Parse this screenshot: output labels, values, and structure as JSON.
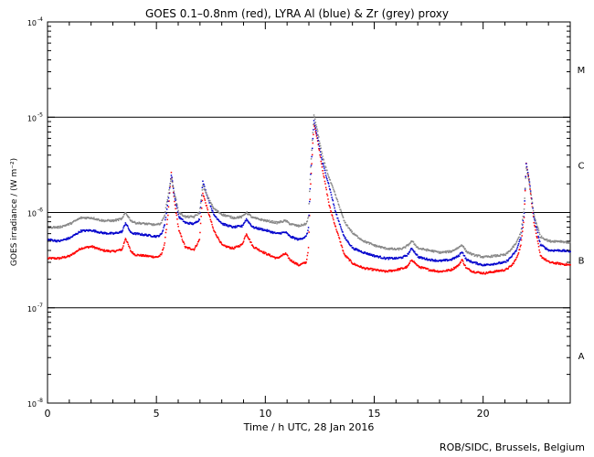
{
  "chart_data": {
    "type": "scatter",
    "title": "GOES 0.1–0.8nm (red), LYRA Al (blue) & Zr (grey) proxy",
    "xlabel": "Time / h UTC, 28 Jan 2016",
    "ylabel": "GOES irradiance / (W m⁻²)",
    "xlim": [
      0,
      24
    ],
    "ylim": [
      1e-08,
      0.0001
    ],
    "yscale": "log",
    "x_ticks": [
      "0",
      "5",
      "10",
      "15",
      "20"
    ],
    "y_ticks": [
      {
        "base": "10",
        "exp": "-8"
      },
      {
        "base": "10",
        "exp": "-7"
      },
      {
        "base": "10",
        "exp": "-6"
      },
      {
        "base": "10",
        "exp": "-5"
      },
      {
        "base": "10",
        "exp": "-4"
      }
    ],
    "threshold_lines": [
      1e-07,
      1e-06,
      1e-05
    ],
    "flare_classes": [
      {
        "label": "A",
        "level": 3.16e-08
      },
      {
        "label": "B",
        "level": 3.16e-07
      },
      {
        "label": "C",
        "level": 3.16e-06
      },
      {
        "label": "M",
        "level": 3.16e-05
      }
    ],
    "series": [
      {
        "name": "GOES 0.1–0.8nm",
        "color": "#ff0000",
        "points": [
          [
            0,
            3.3e-07
          ],
          [
            0.5,
            3.3e-07
          ],
          [
            1.0,
            3.5e-07
          ],
          [
            1.5,
            4.2e-07
          ],
          [
            2.0,
            4.4e-07
          ],
          [
            2.5,
            4e-07
          ],
          [
            3.0,
            3.9e-07
          ],
          [
            3.4,
            4.1e-07
          ],
          [
            3.55,
            5.4e-07
          ],
          [
            3.8,
            3.9e-07
          ],
          [
            4.0,
            3.6e-07
          ],
          [
            4.5,
            3.5e-07
          ],
          [
            5.0,
            3.4e-07
          ],
          [
            5.2,
            3.6e-07
          ],
          [
            5.35,
            4.8e-07
          ],
          [
            5.5,
            9.5e-07
          ],
          [
            5.65,
            2.6e-06
          ],
          [
            5.8,
            1.3e-06
          ],
          [
            6.0,
            6.5e-07
          ],
          [
            6.3,
            4.3e-07
          ],
          [
            6.7,
            4.1e-07
          ],
          [
            6.95,
            5.2e-07
          ],
          [
            7.1,
            1.6e-06
          ],
          [
            7.3,
            1.1e-06
          ],
          [
            7.6,
            6.5e-07
          ],
          [
            8.0,
            4.5e-07
          ],
          [
            8.5,
            4.2e-07
          ],
          [
            8.9,
            4.6e-07
          ],
          [
            9.1,
            6e-07
          ],
          [
            9.4,
            4.4e-07
          ],
          [
            10.0,
            3.7e-07
          ],
          [
            10.5,
            3.3e-07
          ],
          [
            10.9,
            3.7e-07
          ],
          [
            11.1,
            3.2e-07
          ],
          [
            11.5,
            2.8e-07
          ],
          [
            11.85,
            3e-07
          ],
          [
            11.95,
            4.2e-07
          ],
          [
            12.05,
            2e-06
          ],
          [
            12.2,
            8.5e-06
          ],
          [
            12.35,
            6e-06
          ],
          [
            12.6,
            2.8e-06
          ],
          [
            12.9,
            1.2e-06
          ],
          [
            13.2,
            7e-07
          ],
          [
            13.6,
            3.6e-07
          ],
          [
            14.0,
            2.9e-07
          ],
          [
            14.5,
            2.6e-07
          ],
          [
            15.0,
            2.5e-07
          ],
          [
            15.5,
            2.4e-07
          ],
          [
            16.0,
            2.5e-07
          ],
          [
            16.3,
            2.6e-07
          ],
          [
            16.5,
            2.7e-07
          ],
          [
            16.7,
            3.2e-07
          ],
          [
            17.0,
            2.7e-07
          ],
          [
            17.5,
            2.5e-07
          ],
          [
            18.0,
            2.4e-07
          ],
          [
            18.5,
            2.5e-07
          ],
          [
            18.85,
            2.8e-07
          ],
          [
            19.0,
            3.2e-07
          ],
          [
            19.2,
            2.6e-07
          ],
          [
            19.5,
            2.4e-07
          ],
          [
            20.0,
            2.3e-07
          ],
          [
            20.5,
            2.4e-07
          ],
          [
            21.0,
            2.5e-07
          ],
          [
            21.3,
            2.8e-07
          ],
          [
            21.5,
            3.3e-07
          ],
          [
            21.7,
            4.5e-07
          ],
          [
            21.85,
            9e-07
          ],
          [
            21.95,
            3.3e-06
          ],
          [
            22.1,
            2e-06
          ],
          [
            22.3,
            8e-07
          ],
          [
            22.6,
            3.5e-07
          ],
          [
            23.0,
            3e-07
          ],
          [
            23.5,
            2.9e-07
          ],
          [
            24.0,
            2.8e-07
          ]
        ]
      },
      {
        "name": "LYRA Al",
        "color": "#0000cc",
        "points": [
          [
            0,
            5.2e-07
          ],
          [
            0.5,
            5e-07
          ],
          [
            1.0,
            5.4e-07
          ],
          [
            1.5,
            6.4e-07
          ],
          [
            2.0,
            6.5e-07
          ],
          [
            2.5,
            6.1e-07
          ],
          [
            3.0,
            6e-07
          ],
          [
            3.4,
            6.3e-07
          ],
          [
            3.55,
            7.8e-07
          ],
          [
            3.8,
            6.1e-07
          ],
          [
            4.0,
            6e-07
          ],
          [
            4.5,
            5.8e-07
          ],
          [
            5.0,
            5.6e-07
          ],
          [
            5.2,
            5.9e-07
          ],
          [
            5.35,
            7.5e-07
          ],
          [
            5.5,
            1.3e-06
          ],
          [
            5.65,
            2.5e-06
          ],
          [
            5.8,
            1.5e-06
          ],
          [
            6.0,
            9e-07
          ],
          [
            6.3,
            7.8e-07
          ],
          [
            6.7,
            7.6e-07
          ],
          [
            6.95,
            8.5e-07
          ],
          [
            7.1,
            2.1e-06
          ],
          [
            7.3,
            1.5e-06
          ],
          [
            7.6,
            9.5e-07
          ],
          [
            8.0,
            7.6e-07
          ],
          [
            8.5,
            7e-07
          ],
          [
            8.9,
            7.2e-07
          ],
          [
            9.1,
            8.5e-07
          ],
          [
            9.4,
            7e-07
          ],
          [
            10.0,
            6.5e-07
          ],
          [
            10.5,
            6e-07
          ],
          [
            10.9,
            6.2e-07
          ],
          [
            11.1,
            5.6e-07
          ],
          [
            11.5,
            5.2e-07
          ],
          [
            11.85,
            5.6e-07
          ],
          [
            11.95,
            6.8e-07
          ],
          [
            12.05,
            2.5e-06
          ],
          [
            12.2,
            9e-06
          ],
          [
            12.35,
            6.5e-06
          ],
          [
            12.6,
            3.3e-06
          ],
          [
            12.9,
            1.9e-06
          ],
          [
            13.2,
            1e-06
          ],
          [
            13.6,
            5.5e-07
          ],
          [
            14.0,
            4.2e-07
          ],
          [
            14.5,
            3.8e-07
          ],
          [
            15.0,
            3.5e-07
          ],
          [
            15.5,
            3.3e-07
          ],
          [
            16.0,
            3.3e-07
          ],
          [
            16.3,
            3.4e-07
          ],
          [
            16.5,
            3.6e-07
          ],
          [
            16.7,
            4.2e-07
          ],
          [
            17.0,
            3.4e-07
          ],
          [
            17.5,
            3.2e-07
          ],
          [
            18.0,
            3.1e-07
          ],
          [
            18.5,
            3.2e-07
          ],
          [
            18.85,
            3.5e-07
          ],
          [
            19.0,
            3.9e-07
          ],
          [
            19.2,
            3.2e-07
          ],
          [
            19.5,
            3e-07
          ],
          [
            20.0,
            2.8e-07
          ],
          [
            20.5,
            2.9e-07
          ],
          [
            21.0,
            3e-07
          ],
          [
            21.3,
            3.5e-07
          ],
          [
            21.5,
            4e-07
          ],
          [
            21.7,
            5.5e-07
          ],
          [
            21.85,
            1e-06
          ],
          [
            21.95,
            3.2e-06
          ],
          [
            22.1,
            2.1e-06
          ],
          [
            22.3,
            9e-07
          ],
          [
            22.6,
            4.6e-07
          ],
          [
            23.0,
            4e-07
          ],
          [
            23.5,
            4e-07
          ],
          [
            24.0,
            3.9e-07
          ]
        ]
      },
      {
        "name": "Zr",
        "color": "#888888",
        "points": [
          [
            0,
            7e-07
          ],
          [
            0.5,
            7e-07
          ],
          [
            1.0,
            7.6e-07
          ],
          [
            1.5,
            8.8e-07
          ],
          [
            2.0,
            8.8e-07
          ],
          [
            2.5,
            8.2e-07
          ],
          [
            3.0,
            8.2e-07
          ],
          [
            3.4,
            8.6e-07
          ],
          [
            3.55,
            1e-06
          ],
          [
            3.8,
            8.2e-07
          ],
          [
            4.0,
            7.8e-07
          ],
          [
            4.5,
            7.6e-07
          ],
          [
            5.0,
            7.4e-07
          ],
          [
            5.2,
            7.8e-07
          ],
          [
            5.35,
            9.5e-07
          ],
          [
            5.5,
            1.5e-06
          ],
          [
            5.65,
            2.3e-06
          ],
          [
            5.8,
            1.6e-06
          ],
          [
            6.0,
            1e-06
          ],
          [
            6.3,
            9e-07
          ],
          [
            6.7,
            9e-07
          ],
          [
            6.95,
            1e-06
          ],
          [
            7.1,
            1.9e-06
          ],
          [
            7.3,
            1.5e-06
          ],
          [
            7.6,
            1.1e-06
          ],
          [
            8.0,
            9.5e-07
          ],
          [
            8.5,
            8.8e-07
          ],
          [
            8.9,
            9e-07
          ],
          [
            9.1,
            1e-06
          ],
          [
            9.4,
            8.8e-07
          ],
          [
            10.0,
            8.2e-07
          ],
          [
            10.5,
            7.8e-07
          ],
          [
            10.9,
            8.2e-07
          ],
          [
            11.1,
            7.6e-07
          ],
          [
            11.5,
            7.2e-07
          ],
          [
            11.85,
            7.6e-07
          ],
          [
            11.95,
            9e-07
          ],
          [
            12.05,
            3e-06
          ],
          [
            12.2,
            1.05e-05
          ],
          [
            12.35,
            7.5e-06
          ],
          [
            12.6,
            3.8e-06
          ],
          [
            12.9,
            2.3e-06
          ],
          [
            13.2,
            1.5e-06
          ],
          [
            13.6,
            8e-07
          ],
          [
            14.0,
            6e-07
          ],
          [
            14.5,
            5e-07
          ],
          [
            15.0,
            4.5e-07
          ],
          [
            15.5,
            4.2e-07
          ],
          [
            16.0,
            4.1e-07
          ],
          [
            16.3,
            4.2e-07
          ],
          [
            16.5,
            4.5e-07
          ],
          [
            16.7,
            5e-07
          ],
          [
            17.0,
            4.2e-07
          ],
          [
            17.5,
            4e-07
          ],
          [
            18.0,
            3.8e-07
          ],
          [
            18.5,
            3.9e-07
          ],
          [
            18.85,
            4.3e-07
          ],
          [
            19.0,
            4.6e-07
          ],
          [
            19.2,
            3.9e-07
          ],
          [
            19.5,
            3.6e-07
          ],
          [
            20.0,
            3.4e-07
          ],
          [
            20.5,
            3.5e-07
          ],
          [
            21.0,
            3.6e-07
          ],
          [
            21.3,
            4.2e-07
          ],
          [
            21.5,
            4.8e-07
          ],
          [
            21.7,
            6.2e-07
          ],
          [
            21.85,
            1.1e-06
          ],
          [
            21.95,
            2.9e-06
          ],
          [
            22.1,
            2e-06
          ],
          [
            22.3,
            9.5e-07
          ],
          [
            22.6,
            5.6e-07
          ],
          [
            23.0,
            5e-07
          ],
          [
            23.5,
            5e-07
          ],
          [
            24.0,
            4.8e-07
          ]
        ]
      }
    ]
  },
  "footer": {
    "credit": "ROB/SIDC, Brussels, Belgium"
  }
}
